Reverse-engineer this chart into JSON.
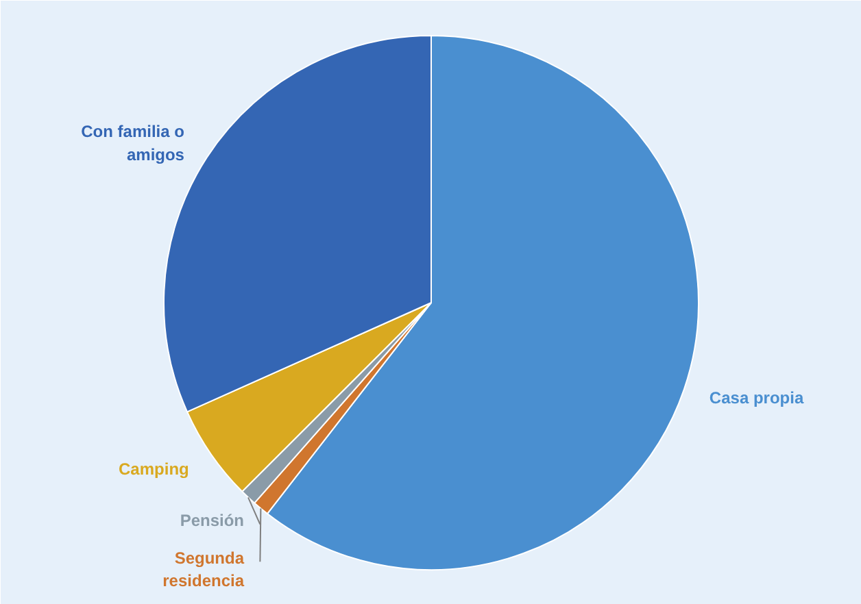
{
  "chart_data": {
    "type": "pie",
    "categories": [
      "Casa propia",
      "Segunda\nresidencia",
      "Pensión",
      "Camping",
      "Con familia o\namigos"
    ],
    "values": [
      60.5,
      1,
      1,
      5.8,
      31.7
    ],
    "colors": [
      "#4a8fd0",
      "#d0762e",
      "#8a9ba8",
      "#d9a920",
      "#3466b4"
    ]
  }
}
